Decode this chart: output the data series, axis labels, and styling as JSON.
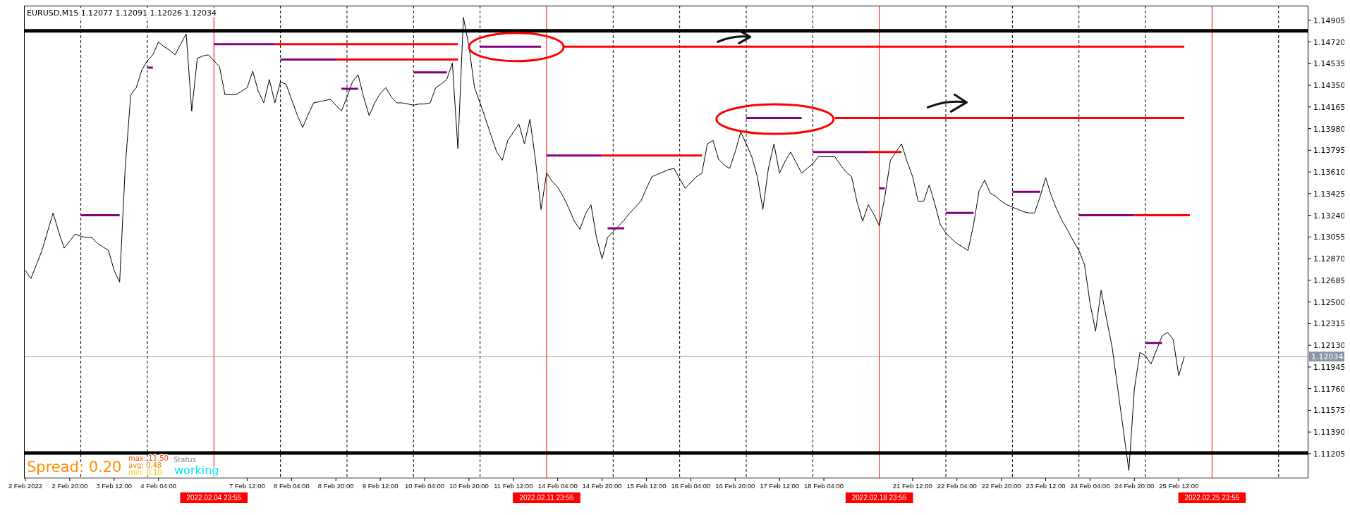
{
  "chart_data": {
    "type": "line",
    "title": "EURUSD,M15  1.12077 1.12091 1.12026 1.12034",
    "ylim": [
      1.11,
      1.1503
    ],
    "categories": [
      "2 Feb 2022",
      null,
      null,
      null,
      null,
      null,
      null,
      null,
      "2 Feb 20:00",
      null,
      null,
      null,
      null,
      null,
      null,
      null,
      "3 Feb 12:00",
      null,
      null,
      null,
      null,
      null,
      null,
      null,
      "4 Feb 04:00",
      null,
      null,
      null,
      null,
      null,
      null,
      null,
      null,
      null,
      null,
      null,
      null,
      null,
      null,
      null,
      "7 Feb 12:00",
      null,
      null,
      null,
      null,
      null,
      null,
      null,
      "8 Feb 04:00",
      null,
      null,
      null,
      null,
      null,
      null,
      null,
      "8 Feb 20:00",
      null,
      null,
      null,
      null,
      null,
      null,
      null,
      "9 Feb 12:00",
      null,
      null,
      null,
      null,
      null,
      null,
      null,
      "10 Feb 04:00",
      null,
      null,
      null,
      null,
      null,
      null,
      null,
      "10 Feb 20:00",
      null,
      null,
      null,
      null,
      null,
      null,
      null,
      "11 Feb 12:00",
      null,
      null,
      null,
      null,
      null,
      null,
      null,
      "14 Feb 04:00",
      null,
      null,
      null,
      null,
      null,
      null,
      null,
      "14 Feb 20:00",
      null,
      null,
      null,
      null,
      null,
      null,
      null,
      "15 Feb 12:00",
      null,
      null,
      null,
      null,
      null,
      null,
      null,
      "16 Feb 04:00",
      null,
      null,
      null,
      null,
      null,
      null,
      null,
      "16 Feb 20:00",
      null,
      null,
      null,
      null,
      null,
      null,
      null,
      "17 Feb 12:00",
      null,
      null,
      null,
      null,
      null,
      null,
      null,
      "18 Feb 04:00",
      null,
      null,
      null,
      null,
      null,
      null,
      null,
      null,
      null,
      null,
      null,
      null,
      null,
      null,
      null,
      "21 Feb 12:00",
      null,
      null,
      null,
      null,
      null,
      null,
      null,
      "22 Feb 04:00",
      null,
      null,
      null,
      null,
      null,
      null,
      null,
      "22 Feb 20:00",
      null,
      null,
      null,
      null,
      null,
      null,
      null,
      "23 Feb 12:00",
      null,
      null,
      null,
      null,
      null,
      null,
      null,
      "24 Feb 04:00",
      null,
      null,
      null,
      null,
      null,
      null,
      null,
      "24 Feb 20:00",
      null,
      null,
      null,
      null,
      null,
      null,
      null,
      "25 Feb 12:00",
      null,
      null,
      null,
      null,
      null,
      null,
      null,
      null,
      null,
      null,
      null,
      null,
      null,
      null,
      null,
      null,
      null,
      null,
      null,
      null,
      null,
      null,
      null
    ],
    "yticks": [
      1.14905,
      {
        "value": 1.1472,
        "label": "1.14720"
      },
      1.14535,
      {
        "value": 1.1435,
        "label": "1.14350"
      },
      1.14165,
      {
        "value": 1.1398,
        "label": "1.13980"
      },
      1.13795,
      {
        "value": 1.1361,
        "label": "1.13610"
      },
      1.13425,
      {
        "value": 1.1324,
        "label": "1.13240"
      },
      1.13055,
      {
        "value": 1.1287,
        "label": "1.12870"
      },
      1.12685,
      {
        "value": 1.125,
        "label": "1.12500"
      },
      1.12315,
      {
        "value": 1.1213,
        "label": "1.12130"
      },
      1.11945,
      {
        "value": 1.1176,
        "label": "1.11760"
      },
      1.11575,
      {
        "value": 1.1139,
        "label": "1.11390"
      },
      1.11205
    ],
    "series": [
      {
        "color": "#000000",
        "values": [
          1.1277,
          1.127,
          1.1282,
          1.1294,
          1.131,
          1.1326,
          1.131,
          1.1296,
          1.1302,
          1.1308,
          1.1306,
          1.1305,
          1.1305,
          1.13,
          1.1297,
          1.1294,
          1.1277,
          1.1267,
          1.1364,
          1.1427,
          1.1433,
          1.1448,
          1.1456,
          1.1461,
          1.1472,
          1.1468,
          1.1465,
          1.1461,
          1.147,
          1.1479,
          1.1413,
          1.1458,
          1.146,
          1.1461,
          1.1456,
          1.1451,
          1.1427,
          1.1427,
          1.1427,
          1.143,
          1.1433,
          1.1447,
          1.143,
          1.142,
          1.144,
          1.142,
          1.1438,
          1.1436,
          1.1423,
          1.141,
          1.1399,
          1.141,
          1.142,
          1.1421,
          1.1422,
          1.1423,
          1.1418,
          1.1413,
          1.1425,
          1.1438,
          1.1444,
          1.1425,
          1.1409,
          1.142,
          1.1428,
          1.1433,
          1.1425,
          1.142,
          1.142,
          1.1419,
          1.1418,
          1.1419,
          1.1419,
          1.142,
          1.1433,
          1.1436,
          1.144,
          1.1454,
          1.1381,
          1.1493,
          1.1468,
          1.1433,
          1.142,
          1.1406,
          1.1392,
          1.1378,
          1.1371,
          1.1388,
          1.1395,
          1.1402,
          1.1385,
          1.1406,
          1.1371,
          1.1329,
          1.136,
          1.1353,
          1.1348,
          1.134,
          1.133,
          1.1319,
          1.1312,
          1.1325,
          1.1333,
          1.1305,
          1.1287,
          1.1305,
          1.131,
          1.1315,
          1.132,
          1.1326,
          1.1331,
          1.1336,
          1.1347,
          1.1357,
          1.1359,
          1.1361,
          1.1363,
          1.1364,
          1.1355,
          1.1347,
          1.1352,
          1.1357,
          1.136,
          1.1385,
          1.1388,
          1.1372,
          1.1367,
          1.1364,
          1.1378,
          1.1395,
          1.1385,
          1.1374,
          1.1357,
          1.1329,
          1.1364,
          1.1385,
          1.136,
          1.137,
          1.1378,
          1.1369,
          1.136,
          1.1364,
          1.1368,
          1.1374,
          1.1374,
          1.1374,
          1.1374,
          1.1367,
          1.1361,
          1.1357,
          1.1335,
          1.1319,
          1.1333,
          1.1325,
          1.1315,
          1.134,
          1.1371,
          1.1378,
          1.1385,
          1.137,
          1.1357,
          1.1336,
          1.1336,
          1.135,
          1.1334,
          1.1316,
          1.1309,
          1.1304,
          1.13,
          1.1297,
          1.1294,
          1.1316,
          1.1345,
          1.1354,
          1.1343,
          1.134,
          1.1336,
          1.1333,
          1.1331,
          1.1329,
          1.1327,
          1.1326,
          1.1326,
          1.134,
          1.1356,
          1.1341,
          1.1329,
          1.1319,
          1.1311,
          1.1302,
          1.1294,
          1.1282,
          1.1249,
          1.1225,
          1.126,
          1.1235,
          1.1211,
          1.1176,
          1.1141,
          1.1106,
          1.1176,
          1.1207,
          1.1204,
          1.1197,
          1.1209,
          1.1221,
          1.1224,
          1.1218,
          1.1187,
          1.12034,
          null,
          null,
          null,
          null,
          null,
          null,
          null,
          null,
          null,
          null,
          null,
          null,
          null,
          null,
          null,
          null,
          null,
          null,
          null,
          null,
          null,
          null
        ]
      },
      {
        "color": "#800080",
        "values": [
          null,
          null,
          null,
          null,
          null,
          null,
          null,
          null,
          null,
          null,
          1.1324,
          1.1324,
          1.1324,
          1.1324,
          1.1324,
          1.1324,
          1.1324,
          1.1324,
          null,
          null,
          null,
          null,
          null,
          null,
          null,
          null,
          null,
          null,
          null,
          null,
          null,
          null,
          null,
          null,
          1.147,
          1.147,
          1.147,
          1.147,
          1.147,
          1.147,
          1.147,
          1.147,
          1.147,
          1.147,
          1.147,
          1.147,
          null,
          null,
          null,
          null,
          null,
          null,
          null,
          null,
          null,
          null,
          null,
          1.1432,
          1.1432,
          1.1432,
          1.1432,
          null,
          null,
          null,
          null,
          null,
          null,
          null,
          null,
          null,
          null,
          null,
          null,
          null,
          null,
          null,
          null,
          null,
          null,
          null,
          null,
          null,
          1.1468,
          1.1468,
          1.1468,
          1.1468,
          1.1468,
          1.1468,
          1.1468,
          1.1468,
          1.1468,
          1.1468,
          1.1468,
          1.1468,
          null,
          null,
          null,
          null,
          null,
          null,
          null,
          null,
          null,
          null,
          null,
          1.1313,
          1.1313,
          1.1313,
          1.1313,
          null,
          null,
          null,
          null,
          null,
          null,
          null,
          null,
          null,
          null,
          null,
          null,
          null,
          null,
          null,
          null,
          null,
          null,
          null,
          null,
          null,
          1.1407,
          1.1407,
          1.1407,
          1.1407,
          1.1407,
          1.1407,
          1.1407,
          1.1407,
          1.1407,
          1.1407,
          1.1407,
          null,
          null,
          null,
          null,
          null,
          null,
          null,
          null,
          null,
          null,
          null,
          null,
          null,
          1.1347,
          1.1347,
          null,
          null,
          null,
          null,
          null,
          null,
          null,
          null,
          null,
          null,
          1.1326,
          1.1326,
          1.1326,
          1.1326,
          1.1326,
          1.1326,
          null,
          null,
          null,
          null,
          null,
          null,
          null,
          null,
          null,
          null,
          null,
          null,
          null,
          null,
          null,
          null,
          null,
          null,
          1.1324,
          1.1324,
          1.1324,
          1.1324,
          1.1324,
          1.1324,
          1.1324,
          1.1324,
          1.1324,
          1.1324,
          1.1324,
          null,
          null,
          null,
          null,
          null,
          null,
          null,
          null,
          null,
          null,
          null,
          null,
          null,
          null,
          null,
          null,
          null,
          null,
          null,
          null,
          null,
          null,
          null,
          null,
          null,
          null,
          null,
          null,
          null,
          null,
          null
        ]
      },
      {
        "color": "#800080",
        "values": [
          null,
          null,
          null,
          null,
          null,
          null,
          null,
          null,
          null,
          null,
          null,
          null,
          null,
          null,
          null,
          null,
          null,
          null,
          null,
          null,
          null,
          null,
          1.145,
          1.145,
          null,
          null,
          null,
          null,
          null,
          null,
          null,
          null,
          null,
          null,
          null,
          null,
          null,
          null,
          null,
          null,
          null,
          null,
          null,
          null,
          null,
          null,
          1.1457,
          1.1457,
          1.1457,
          1.1457,
          1.1457,
          1.1457,
          1.1457,
          1.1457,
          1.1457,
          1.1457,
          1.1457,
          null,
          null,
          null,
          null,
          null,
          null,
          null,
          null,
          null,
          null,
          null,
          null,
          null,
          1.1446,
          1.1446,
          1.1446,
          1.1446,
          1.1446,
          1.1446,
          1.1446,
          null,
          null,
          null,
          null,
          null,
          null,
          null,
          null,
          null,
          null,
          null,
          null,
          null,
          null,
          null,
          null,
          null,
          1.1375,
          1.1375,
          1.1375,
          1.1375,
          1.1375,
          1.1375,
          1.1375,
          1.1375,
          1.1375,
          1.1375,
          1.1375,
          null,
          null,
          null,
          null,
          null,
          null,
          null,
          null,
          null,
          null,
          null,
          null,
          null,
          null,
          null,
          null,
          null,
          null,
          null,
          null,
          null,
          null,
          null,
          null,
          null,
          null,
          null,
          null,
          null,
          null,
          null,
          null,
          null,
          null,
          null,
          null,
          null,
          1.1378,
          1.1378,
          1.1378,
          1.1378,
          1.1378,
          1.1378,
          1.1378,
          1.1378,
          1.1378,
          1.1378,
          1.1378,
          null,
          null,
          null,
          null,
          null,
          null,
          null,
          null,
          null,
          null,
          null,
          null,
          null,
          null,
          null,
          null,
          null,
          null,
          null,
          null,
          null,
          null,
          null,
          null,
          null,
          1.1344,
          1.1344,
          1.1344,
          1.1344,
          1.1344,
          1.1344,
          null,
          null,
          null,
          null,
          null,
          null,
          null,
          null,
          null,
          null,
          null,
          null,
          null,
          null,
          null,
          null,
          null,
          null,
          1.1215,
          1.1215,
          1.1215,
          1.1215,
          null,
          null,
          null,
          null,
          null,
          null,
          null,
          null,
          null,
          null,
          null,
          null,
          null,
          null,
          null,
          null,
          null,
          null,
          null,
          null,
          null,
          null,
          null,
          null,
          null,
          null
        ]
      },
      {
        "color": "#ff0000",
        "values": [
          null,
          null,
          null,
          null,
          null,
          null,
          null,
          null,
          null,
          null,
          null,
          null,
          null,
          null,
          null,
          null,
          null,
          null,
          null,
          null,
          null,
          null,
          null,
          null,
          null,
          null,
          null,
          null,
          null,
          null,
          null,
          null,
          null,
          null,
          null,
          null,
          null,
          null,
          null,
          null,
          null,
          null,
          null,
          null,
          null,
          1.147,
          1.147,
          1.147,
          1.147,
          1.147,
          1.147,
          1.147,
          1.147,
          1.147,
          1.147,
          1.147,
          1.147,
          1.147,
          1.147,
          1.147,
          1.147,
          1.147,
          1.147,
          1.147,
          1.147,
          1.147,
          1.147,
          1.147,
          1.147,
          1.147,
          1.147,
          1.147,
          1.147,
          1.147,
          1.147,
          1.147,
          1.147,
          1.147,
          1.147,
          null,
          null,
          null,
          null,
          null,
          null,
          null,
          null,
          null,
          null,
          null,
          null,
          null,
          null,
          null,
          null,
          null,
          null,
          null,
          null,
          null,
          null,
          null,
          null,
          null,
          1.1375,
          1.1375,
          1.1375,
          1.1375,
          1.1375,
          1.1375,
          1.1375,
          1.1375,
          1.1375,
          1.1375,
          1.1375,
          1.1375,
          1.1375,
          1.1375,
          1.1375,
          1.1375,
          1.1375,
          1.1375,
          1.1375,
          null,
          null,
          null,
          null,
          null,
          null,
          null,
          null,
          null,
          null,
          null,
          null,
          null,
          null,
          null,
          null,
          null,
          null,
          null,
          null,
          null,
          null,
          null,
          null,
          null,
          null,
          null,
          null,
          null,
          1.1378,
          1.1378,
          1.1378,
          1.1378,
          1.1378,
          1.1378,
          1.1378,
          null,
          null,
          null,
          null,
          null,
          null,
          null,
          null,
          null,
          null,
          null,
          null,
          null,
          null,
          null,
          null,
          null,
          null,
          null,
          null,
          null,
          null,
          null,
          null,
          null,
          null,
          null,
          null,
          null,
          null,
          null,
          null,
          null,
          null,
          null,
          null,
          null,
          null,
          null,
          null,
          null,
          1.1324,
          1.1324,
          1.1324,
          1.1324,
          1.1324,
          1.1324,
          1.1324,
          1.1324,
          1.1324,
          1.1324,
          1.1324,
          null,
          null,
          null,
          null,
          null,
          null,
          null,
          null,
          null,
          null,
          null,
          null,
          null,
          null,
          null,
          null,
          null,
          null,
          null,
          null,
          null
        ]
      },
      {
        "color": "#ff0000",
        "values": [
          null,
          null,
          null,
          null,
          null,
          null,
          null,
          null,
          null,
          null,
          null,
          null,
          null,
          null,
          null,
          null,
          null,
          null,
          null,
          null,
          null,
          null,
          null,
          null,
          null,
          null,
          null,
          null,
          null,
          null,
          null,
          null,
          null,
          null,
          null,
          null,
          null,
          null,
          null,
          null,
          null,
          null,
          null,
          null,
          null,
          null,
          null,
          null,
          null,
          null,
          null,
          null,
          null,
          null,
          null,
          null,
          1.1457,
          1.1457,
          1.1457,
          1.1457,
          1.1457,
          1.1457,
          1.1457,
          1.1457,
          1.1457,
          1.1457,
          1.1457,
          1.1457,
          1.1457,
          1.1457,
          1.1457,
          1.1457,
          1.1457,
          1.1457,
          1.1457,
          1.1457,
          1.1457,
          1.1457,
          1.1457,
          null,
          null,
          null,
          null,
          null,
          null,
          null,
          null,
          null,
          null,
          null,
          null,
          null,
          null,
          null,
          null,
          null,
          null,
          1.1468,
          1.1468,
          1.1468,
          1.1468,
          1.1468,
          1.1468,
          1.1468,
          1.1468,
          1.1468,
          1.1468,
          1.1468,
          1.1468,
          1.1468,
          1.1468,
          1.1468,
          1.1468,
          1.1468,
          1.1468,
          1.1468,
          1.1468,
          1.1468,
          1.1468,
          1.1468,
          1.1468,
          1.1468,
          1.1468,
          1.1468,
          1.1468,
          1.1468,
          1.1468,
          1.1468,
          1.1468,
          1.1468,
          1.1468,
          1.1468,
          1.1468,
          1.1468,
          1.1468,
          1.1468,
          1.1468,
          1.1468,
          1.1468,
          1.1468,
          1.1468,
          1.1468,
          1.1468,
          1.1468,
          1.1468,
          1.1468,
          1.1468,
          1.1468,
          1.1468,
          1.1468,
          1.1468,
          1.1468,
          1.1468,
          1.1468,
          1.1468,
          1.1468,
          1.1468,
          1.1468,
          1.1468,
          1.1468,
          1.1468,
          1.1468,
          1.1468,
          1.1468,
          1.1468,
          1.1468,
          1.1468,
          1.1468,
          1.1468,
          1.1468,
          1.1468,
          1.1468,
          1.1468,
          1.1468,
          1.1468,
          1.1468,
          1.1468,
          1.1468,
          1.1468,
          1.1468,
          1.1468,
          1.1468,
          1.1468,
          1.1468,
          1.1468,
          1.1468,
          1.1468,
          1.1468,
          1.1468,
          1.1468,
          1.1468,
          1.1468,
          1.1468,
          1.1468,
          1.1468,
          1.1468,
          1.1468,
          1.1468,
          1.1468,
          1.1468,
          1.1468,
          1.1468,
          1.1468,
          1.1468,
          1.1468,
          1.1468,
          1.1468,
          1.1468,
          1.1468,
          1.1468,
          null,
          null,
          null,
          null,
          null,
          null,
          null,
          null,
          null,
          null,
          null,
          null,
          null,
          null,
          null,
          null,
          null,
          null,
          null,
          null,
          null,
          null
        ]
      },
      {
        "color": "#ff0000",
        "values": [
          null,
          null,
          null,
          null,
          null,
          null,
          null,
          null,
          null,
          null,
          null,
          null,
          null,
          null,
          null,
          null,
          null,
          null,
          null,
          null,
          null,
          null,
          null,
          null,
          null,
          null,
          null,
          null,
          null,
          null,
          null,
          null,
          null,
          null,
          null,
          null,
          null,
          null,
          null,
          null,
          null,
          null,
          null,
          null,
          null,
          null,
          null,
          null,
          null,
          null,
          null,
          null,
          null,
          null,
          null,
          null,
          null,
          null,
          null,
          null,
          null,
          null,
          null,
          null,
          null,
          null,
          null,
          null,
          null,
          null,
          null,
          null,
          null,
          null,
          null,
          null,
          null,
          null,
          null,
          null,
          null,
          null,
          null,
          null,
          null,
          null,
          null,
          null,
          null,
          null,
          null,
          null,
          null,
          null,
          null,
          null,
          null,
          null,
          null,
          null,
          null,
          null,
          null,
          null,
          null,
          null,
          null,
          null,
          null,
          null,
          null,
          null,
          null,
          null,
          null,
          null,
          null,
          null,
          null,
          null,
          null,
          null,
          null,
          null,
          null,
          null,
          null,
          null,
          null,
          null,
          null,
          null,
          null,
          null,
          null,
          null,
          null,
          null,
          null,
          null,
          null,
          null,
          null,
          null,
          null,
          null,
          1.1407,
          1.1407,
          1.1407,
          1.1407,
          1.1407,
          1.1407,
          1.1407,
          1.1407,
          1.1407,
          1.1407,
          1.1407,
          1.1407,
          1.1407,
          1.1407,
          1.1407,
          1.1407,
          1.1407,
          1.1407,
          1.1407,
          1.1407,
          1.1407,
          1.1407,
          1.1407,
          1.1407,
          1.1407,
          1.1407,
          1.1407,
          1.1407,
          1.1407,
          1.1407,
          1.1407,
          1.1407,
          1.1407,
          1.1407,
          1.1407,
          1.1407,
          1.1407,
          1.1407,
          1.1407,
          1.1407,
          1.1407,
          1.1407,
          1.1407,
          1.1407,
          1.1407,
          1.1407,
          1.1407,
          1.1407,
          1.1407,
          1.1407,
          1.1407,
          1.1407,
          1.1407,
          1.1407,
          1.1407,
          1.1407,
          1.1407,
          1.1407,
          1.1407,
          1.1407,
          1.1407,
          1.1407,
          1.1407,
          1.1407,
          null,
          null,
          null,
          null,
          null,
          null,
          null,
          null,
          null,
          null,
          null,
          null,
          null,
          null,
          null,
          null,
          null,
          null,
          null,
          null,
          null,
          null
        ]
      }
    ],
    "ref_lines": [
      {
        "axis": "y",
        "value": 1.14815,
        "color": "#000000",
        "line_style": "solid"
      },
      {
        "axis": "y",
        "value": 1.1121,
        "color": "#000000",
        "line_style": "solid"
      },
      {
        "axis": "y",
        "value": 1.12034,
        "label": "1.12034",
        "color": "#8896a8",
        "line_style": "solid"
      }
    ],
    "annotations": [
      "Spread: 0.20",
      "max: 11.50",
      "avg: 0.48",
      "min: 0.10",
      "Status",
      "working",
      "2022.02.04 23:55",
      "2022.02.11 23:55",
      "2022.02.18 23:55",
      "2022.02.25 23:55"
    ]
  }
}
